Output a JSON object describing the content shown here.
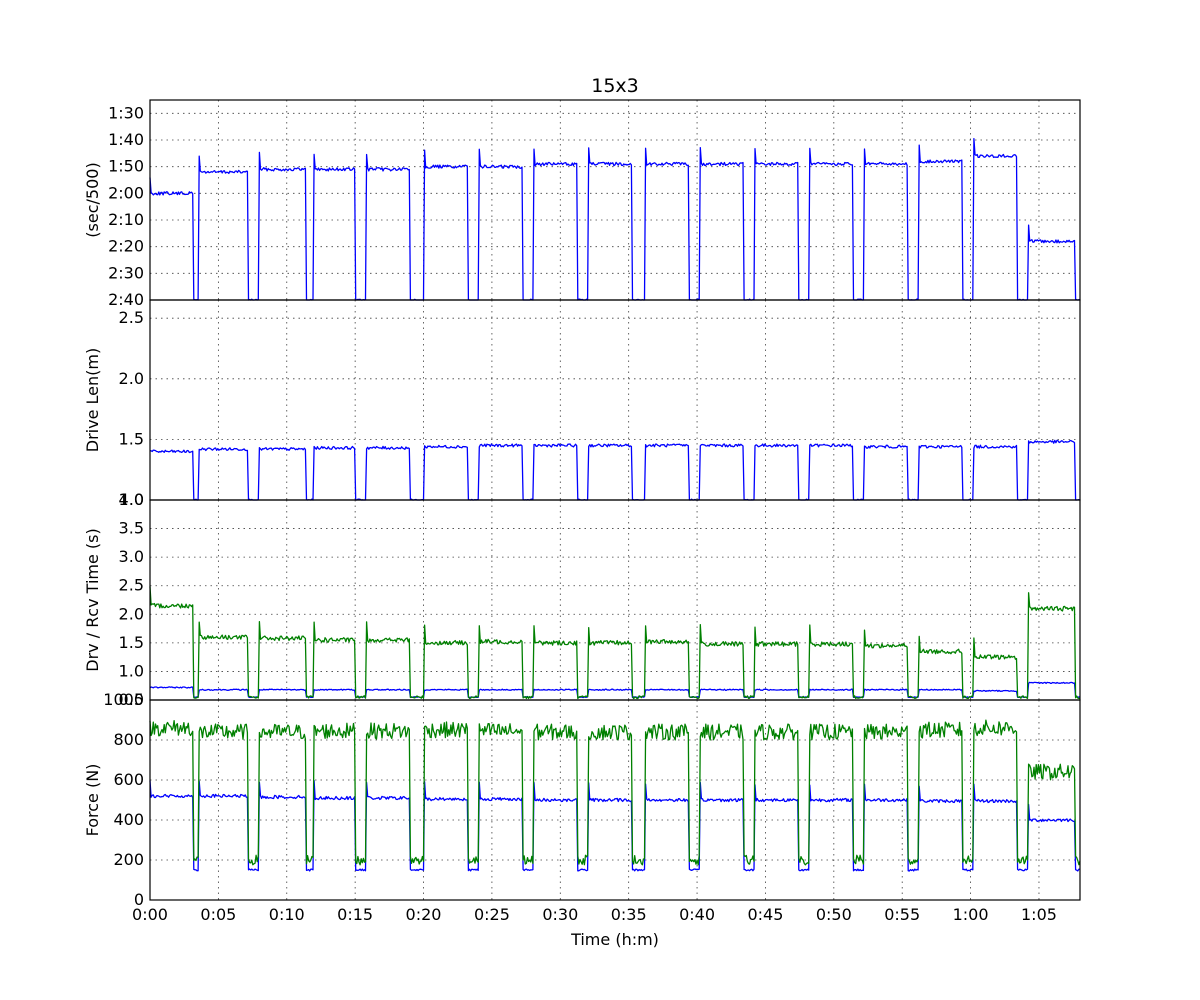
{
  "chart_data": {
    "type": "line",
    "title": "15x3",
    "xlabel": "Time (h:m)",
    "xlim_minutes": [
      0,
      68
    ],
    "x_ticks": [
      "0:00",
      "0:05",
      "0:10",
      "0:15",
      "0:20",
      "0:25",
      "0:30",
      "0:35",
      "0:40",
      "0:45",
      "0:50",
      "0:55",
      "1:00",
      "1:05"
    ],
    "grid": true,
    "colors": {
      "blue": "#0000ff",
      "green": "#008000"
    },
    "intervals": [
      {
        "start": 3.6,
        "end": 7.2,
        "pace_s": 112,
        "drive_len": 1.42,
        "drive_time": 0.68,
        "recovery_time": 1.6,
        "avg_force": 520,
        "peak_force": 840
      },
      {
        "start": 8.0,
        "end": 11.4,
        "pace_s": 111,
        "drive_len": 1.42,
        "drive_time": 0.68,
        "recovery_time": 1.58,
        "avg_force": 515,
        "peak_force": 840
      },
      {
        "start": 12.0,
        "end": 15.0,
        "pace_s": 111,
        "drive_len": 1.43,
        "drive_time": 0.68,
        "recovery_time": 1.55,
        "avg_force": 510,
        "peak_force": 845
      },
      {
        "start": 15.8,
        "end": 19.0,
        "pace_s": 111,
        "drive_len": 1.43,
        "drive_time": 0.68,
        "recovery_time": 1.55,
        "avg_force": 510,
        "peak_force": 845
      },
      {
        "start": 20.0,
        "end": 23.2,
        "pace_s": 110,
        "drive_len": 1.44,
        "drive_time": 0.68,
        "recovery_time": 1.5,
        "avg_force": 505,
        "peak_force": 850
      },
      {
        "start": 24.0,
        "end": 27.2,
        "pace_s": 110,
        "drive_len": 1.45,
        "drive_time": 0.68,
        "recovery_time": 1.52,
        "avg_force": 505,
        "peak_force": 845
      },
      {
        "start": 28.0,
        "end": 31.2,
        "pace_s": 109,
        "drive_len": 1.45,
        "drive_time": 0.68,
        "recovery_time": 1.5,
        "avg_force": 500,
        "peak_force": 840
      },
      {
        "start": 32.0,
        "end": 35.2,
        "pace_s": 109,
        "drive_len": 1.45,
        "drive_time": 0.68,
        "recovery_time": 1.5,
        "avg_force": 500,
        "peak_force": 840
      },
      {
        "start": 36.2,
        "end": 39.4,
        "pace_s": 109,
        "drive_len": 1.45,
        "drive_time": 0.68,
        "recovery_time": 1.52,
        "avg_force": 500,
        "peak_force": 840
      },
      {
        "start": 40.2,
        "end": 43.4,
        "pace_s": 109,
        "drive_len": 1.45,
        "drive_time": 0.68,
        "recovery_time": 1.48,
        "avg_force": 500,
        "peak_force": 840
      },
      {
        "start": 44.2,
        "end": 47.4,
        "pace_s": 109,
        "drive_len": 1.45,
        "drive_time": 0.68,
        "recovery_time": 1.48,
        "avg_force": 500,
        "peak_force": 840
      },
      {
        "start": 48.2,
        "end": 51.4,
        "pace_s": 109,
        "drive_len": 1.45,
        "drive_time": 0.68,
        "recovery_time": 1.48,
        "avg_force": 500,
        "peak_force": 840
      },
      {
        "start": 52.2,
        "end": 55.4,
        "pace_s": 109,
        "drive_len": 1.44,
        "drive_time": 0.68,
        "recovery_time": 1.45,
        "avg_force": 500,
        "peak_force": 840
      },
      {
        "start": 56.2,
        "end": 59.4,
        "pace_s": 108,
        "drive_len": 1.44,
        "drive_time": 0.68,
        "recovery_time": 1.35,
        "avg_force": 495,
        "peak_force": 850
      },
      {
        "start": 60.2,
        "end": 63.4,
        "pace_s": 106,
        "drive_len": 1.44,
        "drive_time": 0.66,
        "recovery_time": 1.25,
        "avg_force": 495,
        "peak_force": 860
      }
    ],
    "warmup": {
      "start": 0,
      "end": 3.2,
      "pace_s": 120,
      "drive_len": 1.4,
      "drive_time": 0.72,
      "recovery_time": 2.15,
      "avg_force": 520,
      "peak_force": 860
    },
    "cooldown": {
      "start": 64.2,
      "end": 67.6,
      "pace_s": 138,
      "drive_len": 1.48,
      "drive_time": 0.8,
      "recovery_time": 2.1,
      "avg_force": 400,
      "peak_force": 640
    },
    "rest": {
      "pace_s": 160,
      "drive_len": 1.0,
      "drive_time": 0.55,
      "recovery_time": 0.55,
      "avg_force": 150,
      "peak_force": 200
    },
    "panels": [
      {
        "id": "pace",
        "ylabel": "(sec/500)",
        "ylim": [
          160,
          85
        ],
        "y_tick_values": [
          160,
          150,
          140,
          130,
          120,
          110,
          100,
          90
        ],
        "y_tick_labels": [
          "2:40",
          "2:30",
          "2:20",
          "2:10",
          "2:00",
          "1:50",
          "1:40",
          "1:30"
        ],
        "series": [
          {
            "field": "pace_s",
            "color": "blue"
          }
        ]
      },
      {
        "id": "drive_length",
        "ylabel": "Drive Len(m)",
        "ylim": [
          1.0,
          2.65
        ],
        "y_tick_values": [
          1.0,
          1.5,
          2.0,
          2.5
        ],
        "y_tick_labels": [
          "1.0",
          "1.5",
          "2.0",
          "2.5"
        ],
        "series": [
          {
            "field": "drive_len",
            "color": "blue"
          }
        ]
      },
      {
        "id": "drive_recovery_time",
        "ylabel": "Drv / Rcv Time (s)",
        "ylim": [
          0.5,
          4.0
        ],
        "y_tick_values": [
          0.5,
          1.0,
          1.5,
          2.0,
          2.5,
          3.0,
          3.5,
          4.0
        ],
        "y_tick_labels": [
          "0.5",
          "1.0",
          "1.5",
          "2.0",
          "2.5",
          "3.0",
          "3.5",
          "4.0"
        ],
        "series": [
          {
            "field": "drive_time",
            "color": "blue"
          },
          {
            "field": "recovery_time",
            "color": "green"
          }
        ]
      },
      {
        "id": "force",
        "ylabel": "Force (N)",
        "ylim": [
          0,
          1000
        ],
        "y_tick_values": [
          0,
          200,
          400,
          600,
          800,
          1000
        ],
        "y_tick_labels": [
          "0",
          "200",
          "400",
          "600",
          "800",
          "1000"
        ],
        "series": [
          {
            "field": "avg_force",
            "color": "blue"
          },
          {
            "field": "peak_force",
            "color": "green"
          }
        ]
      }
    ]
  }
}
